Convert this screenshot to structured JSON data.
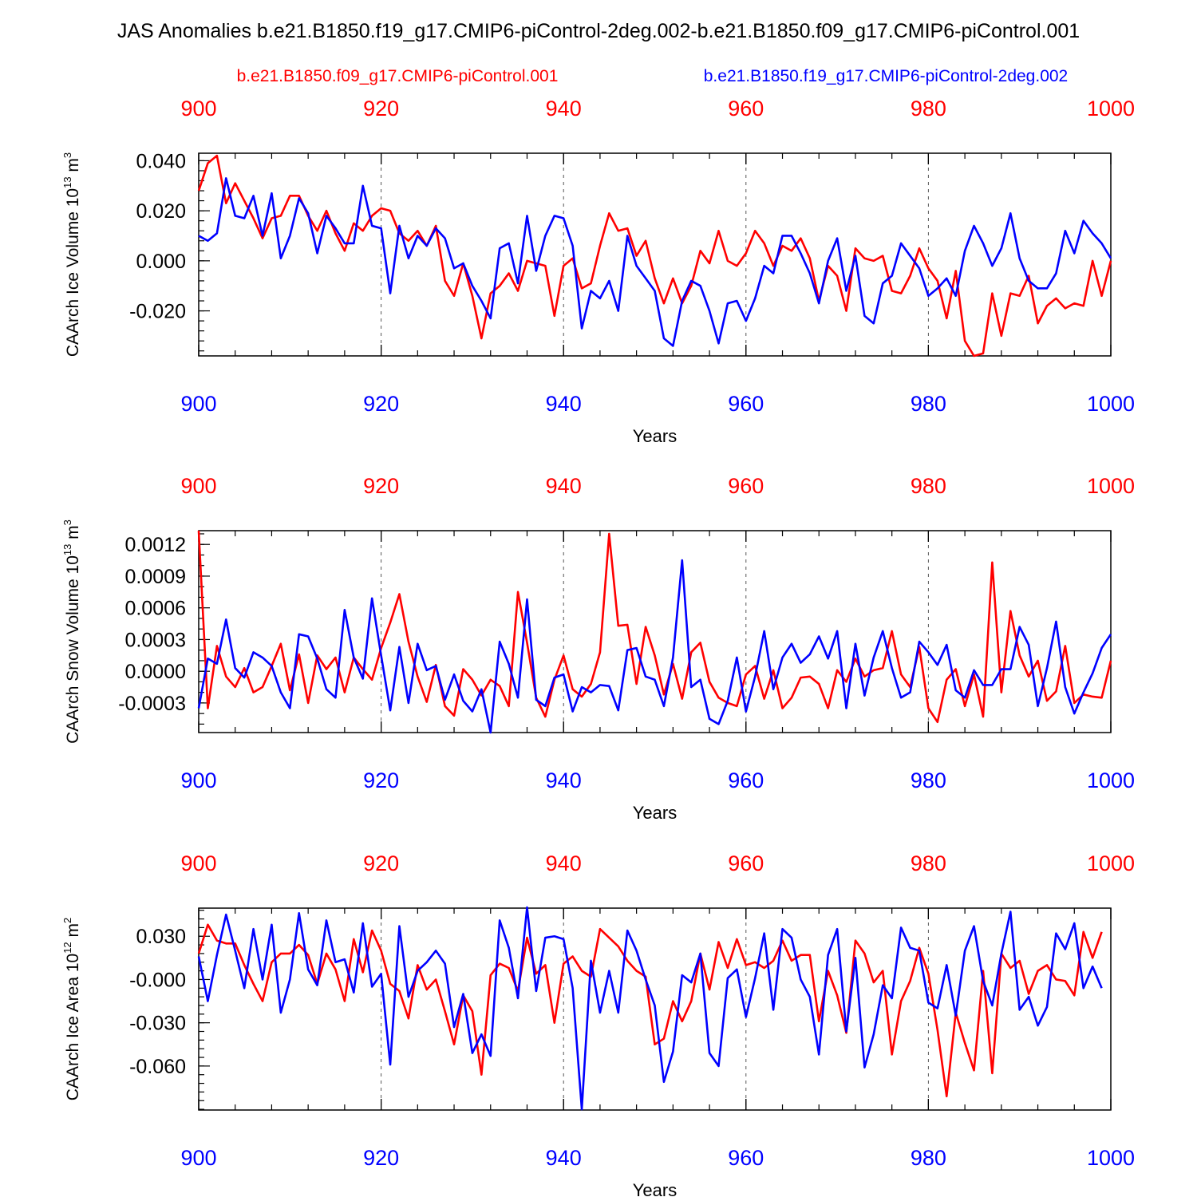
{
  "figure_title": "JAS Anomalies b.e21.B1850.f19_g17.CMIP6-piControl-2deg.002-b.e21.B1850.f09_g17.CMIP6-piControl.001",
  "legend": {
    "red_label": "b.e21.B1850.f09_g17.CMIP6-piControl.001",
    "blue_label": "b.e21.B1850.f19_g17.CMIP6-piControl-2deg.002"
  },
  "colors": {
    "red": "#ff0000",
    "blue": "#0000ff",
    "axis": "#000000"
  },
  "chart_data": [
    {
      "type": "line",
      "title": "",
      "xlabel": "Years",
      "ylabel": "CAArch Ice Volume",
      "ylabel_exp": "13",
      "ylabel_unit": "m",
      "ylabel_unit_exp": "3",
      "xlim": [
        900,
        1000
      ],
      "ylim": [
        -0.038,
        0.043
      ],
      "xticks": [
        900,
        920,
        940,
        960,
        980,
        1000
      ],
      "yticks": [
        -0.02,
        0.0,
        0.02,
        0.04
      ],
      "ytick_labels": [
        "-0.020",
        "0.000",
        "0.020",
        "0.040"
      ],
      "yminor_step": 0.004,
      "series": [
        {
          "name": "b.e21.B1850.f09_g17.CMIP6-piControl.001",
          "color": "#ff0000",
          "start_year": 900,
          "values": [
            0.028,
            0.039,
            0.042,
            0.023,
            0.031,
            0.024,
            0.017,
            0.009,
            0.017,
            0.018,
            0.026,
            0.026,
            0.018,
            0.012,
            0.02,
            0.011,
            0.004,
            0.015,
            0.012,
            0.018,
            0.021,
            0.02,
            0.011,
            0.008,
            0.012,
            0.006,
            0.014,
            -0.008,
            -0.014,
            -0.001,
            -0.014,
            -0.031,
            -0.013,
            -0.01,
            -0.005,
            -0.012,
            0.0,
            -0.001,
            -0.002,
            -0.022,
            -0.002,
            0.001,
            -0.011,
            -0.009,
            0.006,
            0.019,
            0.012,
            0.013,
            0.002,
            0.008,
            -0.007,
            -0.017,
            -0.007,
            -0.017,
            -0.01,
            0.004,
            -0.001,
            0.012,
            0.0,
            -0.002,
            0.003,
            0.012,
            0.007,
            -0.002,
            0.006,
            0.004,
            0.009,
            0.001,
            -0.016,
            -0.002,
            -0.006,
            -0.02,
            0.005,
            0.001,
            0.0,
            0.002,
            -0.012,
            -0.013,
            -0.006,
            0.005,
            -0.003,
            -0.008,
            -0.023,
            -0.004,
            -0.032,
            -0.038,
            -0.037,
            -0.013,
            -0.03,
            -0.013,
            -0.014,
            -0.006,
            -0.025,
            -0.018,
            -0.015,
            -0.019,
            -0.017,
            -0.018,
            0.0,
            -0.014,
            0.0
          ]
        },
        {
          "name": "b.e21.B1850.f19_g17.CMIP6-piControl-2deg.002",
          "color": "#0000ff",
          "start_year": 900,
          "values": [
            0.01,
            0.008,
            0.011,
            0.033,
            0.018,
            0.017,
            0.026,
            0.01,
            0.027,
            0.001,
            0.01,
            0.025,
            0.019,
            0.003,
            0.018,
            0.013,
            0.007,
            0.007,
            0.03,
            0.014,
            0.013,
            -0.013,
            0.014,
            0.001,
            0.01,
            0.006,
            0.013,
            0.009,
            -0.003,
            -0.001,
            -0.01,
            -0.016,
            -0.023,
            0.005,
            0.007,
            -0.009,
            0.018,
            -0.004,
            0.01,
            0.018,
            0.017,
            0.006,
            -0.027,
            -0.012,
            -0.015,
            -0.008,
            -0.02,
            0.01,
            -0.002,
            -0.007,
            -0.012,
            -0.031,
            -0.034,
            -0.016,
            -0.008,
            -0.01,
            -0.02,
            -0.033,
            -0.017,
            -0.016,
            -0.024,
            -0.015,
            -0.002,
            -0.005,
            0.01,
            0.01,
            0.003,
            -0.005,
            -0.017,
            0.0,
            0.009,
            -0.012,
            0.002,
            -0.022,
            -0.025,
            -0.009,
            -0.006,
            0.007,
            0.002,
            -0.003,
            -0.014,
            -0.011,
            -0.007,
            -0.014,
            0.004,
            0.014,
            0.007,
            -0.002,
            0.005,
            0.019,
            0.001,
            -0.008,
            -0.011,
            -0.011,
            -0.005,
            0.012,
            0.003,
            0.016,
            0.011,
            0.007,
            0.001
          ]
        }
      ]
    },
    {
      "type": "line",
      "title": "",
      "xlabel": "Years",
      "ylabel": "CAArch Snow Volume",
      "ylabel_exp": "13",
      "ylabel_unit": "m",
      "ylabel_unit_exp": "3",
      "xlim": [
        900,
        1000
      ],
      "ylim": [
        -0.00058,
        0.00133
      ],
      "xticks": [
        900,
        920,
        940,
        960,
        980,
        1000
      ],
      "yticks": [
        -0.0003,
        0.0,
        0.0003,
        0.0006,
        0.0009,
        0.0012
      ],
      "ytick_labels": [
        "-0.0003",
        "0.0000",
        "0.0003",
        "0.0006",
        "0.0009",
        "0.0012"
      ],
      "yminor_step": 0.0001,
      "series": [
        {
          "name": "b.e21.B1850.f09_g17.CMIP6-piControl.001",
          "color": "#ff0000",
          "start_year": 900,
          "values": [
            0.00133,
            -0.00035,
            0.00024,
            -5e-05,
            -0.00015,
            3e-05,
            -0.0002,
            -0.00015,
            5e-05,
            0.00026,
            -0.00018,
            0.00016,
            -0.0003,
            0.00015,
            2e-05,
            0.00013,
            -0.0002,
            0.00013,
            2e-05,
            -8e-05,
            0.00022,
            0.00046,
            0.00073,
            0.00028,
            -5e-05,
            -0.00029,
            6e-05,
            -0.00033,
            -0.00042,
            2e-05,
            -8e-05,
            -0.00023,
            -8e-05,
            -0.00014,
            -0.00033,
            0.00075,
            0.00027,
            -0.00025,
            -0.00043,
            -8e-05,
            0.00015,
            -0.00017,
            -0.00024,
            -0.00012,
            0.00018,
            0.0013,
            0.00043,
            0.00044,
            -0.00012,
            0.00042,
            0.00015,
            -0.00022,
            7e-05,
            -0.00026,
            0.00018,
            0.00027,
            -0.0001,
            -0.00025,
            -0.0003,
            -0.00033,
            -3e-05,
            5e-05,
            -0.00026,
            1e-05,
            -0.00035,
            -0.00025,
            -6e-05,
            -5e-05,
            -0.00012,
            -0.00035,
            1e-05,
            -0.0001,
            0.00012,
            -5e-05,
            1e-05,
            3e-05,
            0.00038,
            -3e-05,
            -0.00015,
            0.00023,
            -0.00035,
            -0.00048,
            -8e-05,
            2e-05,
            -0.00033,
            -3e-05,
            -0.00043,
            0.00103,
            -0.0002,
            0.00057,
            0.00015,
            -5e-05,
            0.0001,
            -0.00028,
            -0.00019,
            0.00024,
            -0.0003,
            -0.00022,
            -0.00024,
            -0.00025,
            0.0001
          ]
        },
        {
          "name": "b.e21.B1850.f19_g17.CMIP6-piControl-2deg.002",
          "color": "#0000ff",
          "start_year": 900,
          "values": [
            -0.00035,
            0.00012,
            7e-05,
            0.00049,
            3e-05,
            -6e-05,
            0.00018,
            0.00013,
            5e-05,
            -0.0002,
            -0.00035,
            0.00035,
            0.00033,
            0.00012,
            -0.00017,
            -0.00025,
            0.00058,
            0.00013,
            -7e-05,
            0.00069,
            0.00015,
            -0.00037,
            0.00023,
            -0.0003,
            0.00026,
            1e-05,
            5e-05,
            -0.00027,
            -3e-05,
            -0.00028,
            -0.00038,
            -0.00017,
            -0.00058,
            0.00028,
            7e-05,
            -0.00025,
            0.00068,
            -0.00027,
            -0.00033,
            -6e-05,
            -3e-05,
            -0.00038,
            -0.00015,
            -0.0002,
            -0.00013,
            -0.00014,
            -0.00037,
            0.0002,
            0.00022,
            -5e-05,
            -8e-05,
            -0.00033,
            0.00013,
            0.00105,
            -0.00015,
            -8e-05,
            -0.00045,
            -0.0005,
            -0.00028,
            0.00013,
            -0.00038,
            -5e-05,
            0.00038,
            -0.00017,
            0.00013,
            0.00026,
            8e-05,
            0.00016,
            0.00033,
            0.00012,
            0.00038,
            -0.00035,
            0.00026,
            -0.00023,
            0.00013,
            0.00038,
            3e-05,
            -0.00025,
            -0.0002,
            0.00028,
            0.00018,
            6e-05,
            0.00025,
            -0.00018,
            -0.00025,
            1e-05,
            -0.00013,
            -0.00013,
            2e-05,
            2e-05,
            0.00042,
            0.00025,
            -0.00033,
            3e-05,
            0.00047,
            -0.00015,
            -0.0004,
            -0.0002,
            -2e-05,
            0.00022,
            0.00035
          ]
        }
      ]
    },
    {
      "type": "line",
      "title": "",
      "xlabel": "Years",
      "ylabel": "CAArch Ice Area",
      "ylabel_exp": "12",
      "ylabel_unit": "m",
      "ylabel_unit_exp": "2",
      "xlim": [
        900,
        1000
      ],
      "ylim": [
        -0.0905,
        0.0495
      ],
      "xticks": [
        900,
        920,
        940,
        960,
        980,
        1000
      ],
      "yticks": [
        -0.06,
        -0.03,
        0.0,
        0.03
      ],
      "ytick_labels": [
        "-0.060",
        "-0.030",
        "-0.000",
        "0.030"
      ],
      "yminor_step": 0.006,
      "series": [
        {
          "name": "b.e21.B1850.f09_g17.CMIP6-piControl.001",
          "color": "#ff0000",
          "start_year": 900,
          "values": [
            0.018,
            0.038,
            0.027,
            0.025,
            0.025,
            0.01,
            -0.003,
            -0.015,
            0.012,
            0.018,
            0.018,
            0.024,
            0.017,
            -0.003,
            0.018,
            0.007,
            -0.015,
            0.028,
            0.005,
            0.034,
            0.02,
            -0.003,
            -0.008,
            -0.027,
            0.01,
            -0.007,
            0.0,
            -0.022,
            -0.045,
            -0.011,
            -0.022,
            -0.066,
            0.003,
            0.011,
            0.008,
            -0.008,
            0.029,
            0.004,
            0.01,
            -0.03,
            0.011,
            0.016,
            0.006,
            0.002,
            0.035,
            0.029,
            0.023,
            0.013,
            0.006,
            0.002,
            -0.045,
            -0.041,
            -0.015,
            -0.029,
            -0.015,
            0.018,
            -0.007,
            0.026,
            0.008,
            0.028,
            0.01,
            0.012,
            0.008,
            0.013,
            0.027,
            0.013,
            0.017,
            0.017,
            -0.029,
            0.006,
            -0.011,
            -0.037,
            0.027,
            0.018,
            -0.002,
            0.006,
            -0.052,
            -0.015,
            -0.001,
            0.022,
            0.004,
            -0.035,
            -0.081,
            -0.023,
            -0.044,
            -0.063,
            0.006,
            -0.065,
            0.018,
            0.008,
            0.013,
            -0.01,
            0.006,
            0.01,
            0.0,
            -0.001,
            -0.011,
            0.033,
            0.015,
            0.033
          ]
        },
        {
          "name": "b.e21.B1850.f19_g17.CMIP6-piControl-2deg.002",
          "color": "#0000ff",
          "start_year": 900,
          "values": [
            0.016,
            -0.015,
            0.017,
            0.045,
            0.02,
            -0.006,
            0.035,
            0.0,
            0.038,
            -0.023,
            0.0,
            0.046,
            0.007,
            -0.004,
            0.041,
            0.012,
            0.014,
            -0.009,
            0.039,
            -0.005,
            0.004,
            -0.059,
            0.037,
            -0.012,
            0.006,
            0.012,
            0.02,
            0.011,
            -0.033,
            -0.01,
            -0.051,
            -0.038,
            -0.053,
            0.041,
            0.022,
            -0.013,
            0.05,
            -0.008,
            0.029,
            0.03,
            0.028,
            -0.006,
            -0.09,
            0.013,
            -0.023,
            0.006,
            -0.023,
            0.034,
            0.02,
            0.0,
            -0.018,
            -0.071,
            -0.05,
            0.003,
            -0.002,
            0.018,
            -0.051,
            -0.06,
            0.001,
            0.007,
            -0.026,
            0.001,
            0.032,
            -0.021,
            0.035,
            0.029,
            0.0,
            -0.012,
            -0.052,
            0.017,
            0.035,
            -0.036,
            0.015,
            -0.061,
            -0.038,
            -0.004,
            -0.013,
            0.036,
            0.022,
            0.02,
            -0.016,
            -0.02,
            0.01,
            -0.025,
            0.02,
            0.037,
            -0.001,
            -0.018,
            0.018,
            0.047,
            -0.021,
            -0.012,
            -0.032,
            -0.019,
            0.032,
            0.021,
            0.039,
            -0.006,
            0.009,
            -0.006
          ]
        }
      ]
    }
  ]
}
